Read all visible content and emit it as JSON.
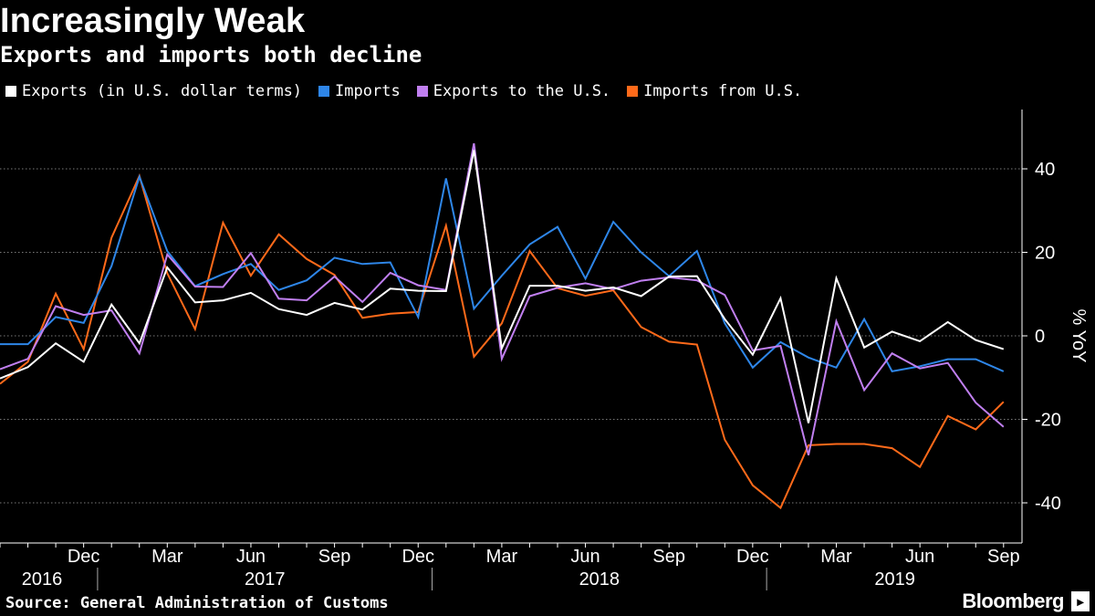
{
  "header": {
    "title": "Increasingly Weak",
    "subtitle": "Exports and imports both decline"
  },
  "footer": {
    "source": "Source: General Administration of Customs",
    "brand": "Bloomberg"
  },
  "chart_data": {
    "type": "line",
    "title": "Increasingly Weak",
    "subtitle": "Exports and imports both decline",
    "ylabel": "% YoY",
    "ylim": [
      -50,
      50
    ],
    "yticks": [
      40,
      20,
      0,
      -20,
      -40
    ],
    "ytick_labels": [
      "40",
      "20",
      "0",
      "-20",
      "-40"
    ],
    "grid": true,
    "legend_position": "top-left",
    "x_start": "2016-09",
    "x": [
      "2016-09",
      "2016-10",
      "2016-11",
      "2016-12",
      "2017-01",
      "2017-02",
      "2017-03",
      "2017-04",
      "2017-05",
      "2017-06",
      "2017-07",
      "2017-08",
      "2017-09",
      "2017-10",
      "2017-11",
      "2017-12",
      "2018-01",
      "2018-02",
      "2018-03",
      "2018-04",
      "2018-05",
      "2018-06",
      "2018-07",
      "2018-08",
      "2018-09",
      "2018-10",
      "2018-11",
      "2018-12",
      "2019-01",
      "2019-02",
      "2019-03",
      "2019-04",
      "2019-05",
      "2019-06",
      "2019-07",
      "2019-08",
      "2019-09"
    ],
    "month_ticks": [
      {
        "index": 3,
        "label": "Dec"
      },
      {
        "index": 6,
        "label": "Mar"
      },
      {
        "index": 9,
        "label": "Jun"
      },
      {
        "index": 12,
        "label": "Sep"
      },
      {
        "index": 15,
        "label": "Dec"
      },
      {
        "index": 18,
        "label": "Mar"
      },
      {
        "index": 21,
        "label": "Jun"
      },
      {
        "index": 24,
        "label": "Sep"
      },
      {
        "index": 27,
        "label": "Dec"
      },
      {
        "index": 30,
        "label": "Mar"
      },
      {
        "index": 33,
        "label": "Jun"
      },
      {
        "index": 36,
        "label": "Sep"
      }
    ],
    "year_labels": [
      {
        "label": "2016",
        "from": 0,
        "to": 3.5
      },
      {
        "label": "2017",
        "from": 3.5,
        "to": 15.5
      },
      {
        "label": "2018",
        "from": 15.5,
        "to": 27.5
      },
      {
        "label": "2019",
        "from": 27.5,
        "to": 36.7
      }
    ],
    "year_separators": [
      3.5,
      15.5,
      27.5
    ],
    "series": [
      {
        "name": "Exports (in U.S. dollar terms)",
        "color": "#ffffff",
        "values": [
          -10.2,
          -7.5,
          -1.8,
          -6.2,
          7.5,
          -1.8,
          16.4,
          8.0,
          8.5,
          10.3,
          6.4,
          5.0,
          7.9,
          6.3,
          11.3,
          10.8,
          10.7,
          44.5,
          -3.0,
          12.0,
          12.0,
          10.8,
          11.6,
          9.5,
          14.2,
          14.3,
          4.0,
          -4.5,
          9.0,
          -20.9,
          13.8,
          -2.8,
          1.0,
          -1.3,
          3.3,
          -1.0,
          -3.2
        ]
      },
      {
        "name": "Imports",
        "color": "#2e86e8",
        "values": [
          -2.0,
          -2.0,
          4.5,
          3.1,
          16.7,
          38.1,
          20.3,
          11.9,
          14.8,
          17.2,
          11.0,
          13.3,
          18.7,
          17.2,
          17.6,
          4.5,
          37.7,
          6.5,
          14.4,
          21.9,
          26.1,
          13.7,
          27.3,
          20.0,
          14.3,
          20.3,
          3.0,
          -7.6,
          -1.5,
          -5.2,
          -7.6,
          4.0,
          -8.5,
          -7.3,
          -5.6,
          -5.6,
          -8.5
        ]
      },
      {
        "name": "Exports to the U.S.",
        "color": "#c07ff0",
        "values": [
          -8.0,
          -5.5,
          7.1,
          5.0,
          6.1,
          -4.2,
          19.5,
          11.8,
          11.7,
          19.8,
          8.9,
          8.5,
          14.2,
          8.1,
          15.1,
          12.1,
          11.0,
          46.1,
          -5.5,
          9.5,
          11.5,
          12.6,
          11.2,
          13.2,
          14.0,
          13.3,
          9.8,
          -3.5,
          -2.4,
          -28.6,
          3.5,
          -13.0,
          -4.2,
          -7.8,
          -6.5,
          -16.0,
          -21.8
        ]
      },
      {
        "name": "Imports from U.S.",
        "color": "#ff6a1a",
        "values": [
          -11.5,
          -6.2,
          10.1,
          -3.2,
          23.5,
          38.3,
          15.0,
          1.6,
          27.1,
          14.4,
          24.3,
          18.4,
          14.6,
          4.3,
          5.3,
          5.7,
          26.4,
          -5.0,
          3.0,
          20.3,
          11.4,
          9.6,
          10.9,
          2.1,
          -1.4,
          -2.1,
          -24.9,
          -35.8,
          -41.2,
          -26.2,
          -25.9,
          -25.9,
          -26.9,
          -31.4,
          -19.2,
          -22.4,
          -15.8
        ]
      }
    ]
  }
}
